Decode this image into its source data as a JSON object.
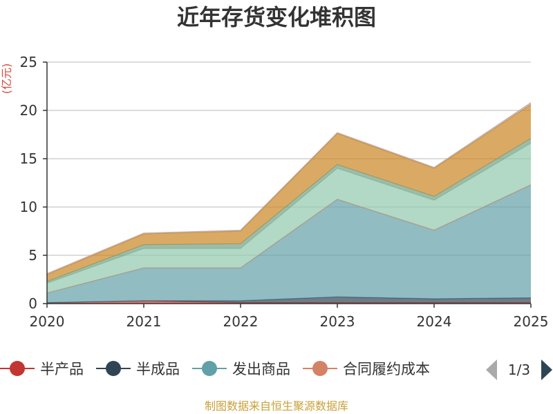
{
  "chart_data": {
    "type": "area",
    "stacked": true,
    "title": "近年存货变化堆积图",
    "unit_label": "(亿元)",
    "categories": [
      "2020",
      "2021",
      "2022",
      "2023",
      "2024",
      "2025"
    ],
    "ylim": [
      0,
      25
    ],
    "yticks": [
      0,
      5,
      10,
      15,
      20,
      25
    ],
    "grid": true,
    "series": [
      {
        "name": "半产品",
        "color": "#c23531",
        "values": [
          0.1,
          0.3,
          0.1,
          0.1,
          0.1,
          0.1
        ]
      },
      {
        "name": "半成品",
        "color": "#2f4554",
        "values": [
          0.0,
          0.0,
          0.2,
          0.6,
          0.4,
          0.5
        ]
      },
      {
        "name": "发出商品",
        "color": "#61a0a8",
        "values": [
          1.0,
          3.4,
          3.4,
          10.1,
          7.1,
          11.7
        ]
      },
      {
        "name": "合同履约成本",
        "color": "#d48265",
        "values": [
          0.0,
          0.0,
          0.0,
          0.0,
          0.0,
          0.0
        ]
      },
      {
        "name": "",
        "color": "#91c7ae",
        "values": [
          1.0,
          2.0,
          2.0,
          3.2,
          3.1,
          4.3
        ]
      },
      {
        "name": "",
        "color": "#749f83",
        "values": [
          0.2,
          0.4,
          0.5,
          0.4,
          0.4,
          0.5
        ]
      },
      {
        "name": "",
        "color": "#ca8622",
        "values": [
          0.7,
          1.1,
          1.3,
          3.2,
          2.9,
          3.5
        ]
      },
      {
        "name": "",
        "color": "#bda29a",
        "values": [
          0.1,
          0.1,
          0.1,
          0.1,
          0.1,
          0.2
        ]
      }
    ]
  },
  "legend": {
    "page_indicator": "1/3",
    "prev_icon": "triangle-left-icon",
    "next_icon": "triangle-right-icon"
  },
  "source_note": "制图数据来自恒生聚源数据库"
}
